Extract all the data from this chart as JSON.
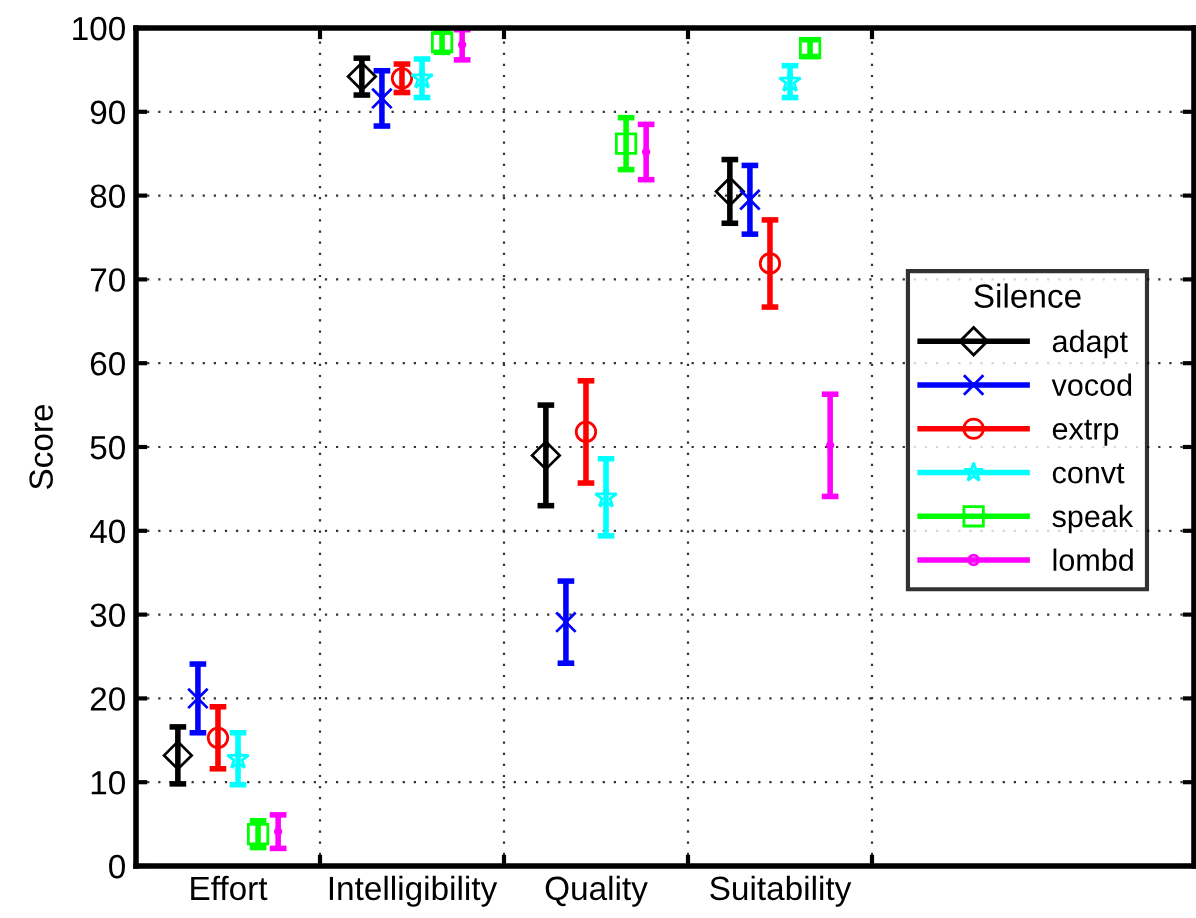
{
  "chart_data": {
    "type": "scatter",
    "ylabel": "Score",
    "legend_title": "Silence",
    "legend": "right",
    "grid": true,
    "categories": [
      "Effort",
      "Intelligibility",
      "Quality",
      "Suitability"
    ],
    "ylim": [
      0,
      100
    ],
    "yticks": [
      0,
      10,
      20,
      30,
      40,
      50,
      60,
      70,
      80,
      90,
      100
    ],
    "series": [
      {
        "name": "adapt",
        "color": "#000000",
        "marker": "diamond",
        "values": [
          13.2,
          94.2,
          49,
          80.5
        ],
        "errors": [
          3.4,
          2.2,
          6,
          3.8
        ]
      },
      {
        "name": "vocod",
        "color": "#0000ff",
        "marker": "cross",
        "values": [
          20,
          91.6,
          29.1,
          79.5
        ],
        "errors": [
          4.1,
          3.3,
          4.9,
          4.1
        ]
      },
      {
        "name": "extrp",
        "color": "#ff0000",
        "marker": "circle",
        "values": [
          15.3,
          94,
          51.8,
          71.9
        ],
        "errors": [
          3.7,
          1.7,
          6.1,
          5.2
        ]
      },
      {
        "name": "convt",
        "color": "#00ffff",
        "marker": "star",
        "values": [
          12.8,
          94,
          44,
          93.6
        ],
        "errors": [
          3.1,
          2.3,
          4.6,
          1.9
        ]
      },
      {
        "name": "speak",
        "color": "#00ff00",
        "marker": "square",
        "values": [
          3.8,
          98.3,
          86.2,
          97.6
        ],
        "errors": [
          1.6,
          1.2,
          3.1,
          1
        ]
      },
      {
        "name": "lombd",
        "color": "#ff00ff",
        "marker": "point",
        "values": [
          4.1,
          98,
          85.2,
          50.2
        ],
        "errors": [
          2,
          1.8,
          3.3,
          6.1
        ]
      }
    ]
  }
}
